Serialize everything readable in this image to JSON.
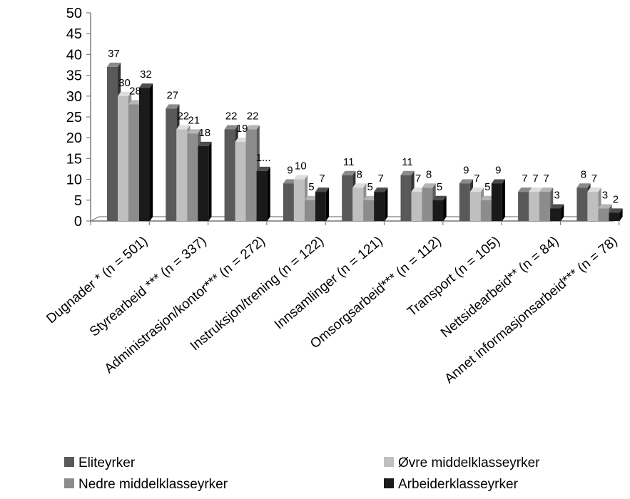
{
  "chart_data": {
    "type": "bar",
    "ylim": [
      0,
      50
    ],
    "yticks": [
      "0",
      "5",
      "10",
      "15",
      "20",
      "25",
      "30",
      "35",
      "40",
      "45",
      "50"
    ],
    "categories": [
      "Dugnader * (n = 501)",
      "Styrearbeid *** (n = 337)",
      "Administrasjon/kontor*** (n = 272)",
      "Instruksjon/trening (n = 122)",
      "Innsamlinger (n = 121)",
      "Omsorgsarbeid*** (n = 112)",
      "Transport (n = 105)",
      "Nettsidearbeid** (n = 84)",
      "Annet informasjonsarbeid*** (n = 78)"
    ],
    "series": [
      {
        "name": "Eliteyrker",
        "values": [
          37,
          27,
          22,
          9,
          11,
          11,
          9,
          7,
          8
        ]
      },
      {
        "name": "Øvre middelklasseyrker",
        "values": [
          30,
          22,
          19,
          10,
          8,
          7,
          7,
          7,
          7
        ]
      },
      {
        "name": "Nedre middelklasseyrker",
        "values": [
          28,
          21,
          22,
          5,
          5,
          8,
          5,
          7,
          3
        ]
      },
      {
        "name": "Arbeiderklasseyrker",
        "values": [
          32,
          18,
          12,
          7,
          7,
          5,
          9,
          3,
          2
        ]
      }
    ],
    "data_labels": [
      [
        "37",
        "30",
        "28",
        "32"
      ],
      [
        "27",
        "22",
        "21",
        "18"
      ],
      [
        "22",
        "19",
        "22",
        "1..."
      ],
      [
        "9",
        "10",
        "5",
        "7"
      ],
      [
        "11",
        "8",
        "5",
        "7"
      ],
      [
        "11",
        "7",
        "8",
        "5"
      ],
      [
        "9",
        "7",
        "5",
        "9"
      ],
      [
        "7",
        "7",
        "7",
        "3"
      ],
      [
        "8",
        "7",
        "3",
        "2"
      ]
    ],
    "colors": {
      "front": [
        "#595959",
        "#bfbfbf",
        "#8c8c8c",
        "#1a1a1a"
      ],
      "side": [
        "#333333",
        "#8f8f8f",
        "#5e5e5e",
        "#000000"
      ],
      "top": [
        "#8a8a8a",
        "#dedede",
        "#b5b5b5",
        "#4d4d4d"
      ]
    },
    "legend_placement": "bottom",
    "grid": false
  }
}
